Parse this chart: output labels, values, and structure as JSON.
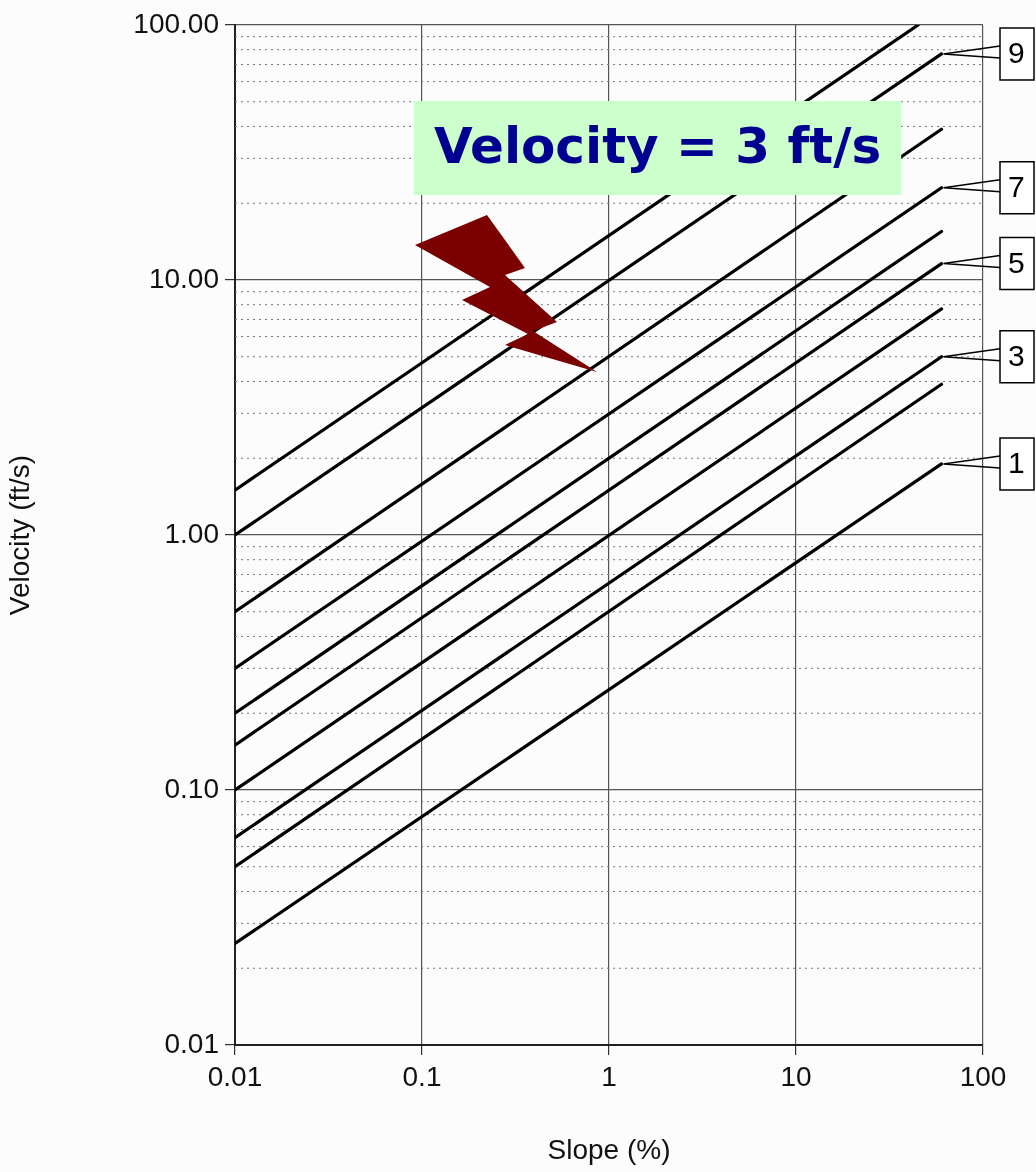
{
  "chart_data": {
    "type": "line",
    "xlabel": "Slope (%)",
    "ylabel": "Velocity (ft/s)",
    "log": "xy",
    "grid": true,
    "legend": "right",
    "marker": "none",
    "line_style": "solid",
    "x": [
      0.01,
      60
    ],
    "xlim": [
      0.01,
      100
    ],
    "xticks": [
      0.01,
      0.1,
      1,
      10,
      100
    ],
    "ylim": [
      0.01,
      100
    ],
    "yticks": [
      {
        "value": 0.01,
        "label": "0.01"
      },
      {
        "value": 0.02,
        "label": null
      },
      {
        "value": 0.03,
        "label": null
      },
      {
        "value": 0.04,
        "label": null
      },
      {
        "value": 0.05,
        "label": null
      },
      {
        "value": 0.06,
        "label": null
      },
      {
        "value": 0.07,
        "label": null
      },
      {
        "value": 0.08,
        "label": null
      },
      {
        "value": 0.09,
        "label": null
      },
      {
        "value": 0.1,
        "label": "0.10"
      },
      {
        "value": 0.2,
        "label": null
      },
      {
        "value": 0.3,
        "label": null
      },
      {
        "value": 0.4,
        "label": null
      },
      {
        "value": 0.5,
        "label": null
      },
      {
        "value": 0.6,
        "label": null
      },
      {
        "value": 0.7,
        "label": null
      },
      {
        "value": 0.8,
        "label": null
      },
      {
        "value": 0.9,
        "label": null
      },
      {
        "value": 1,
        "label": "1.00"
      },
      {
        "value": 2,
        "label": null
      },
      {
        "value": 3,
        "label": null
      },
      {
        "value": 4,
        "label": null
      },
      {
        "value": 5,
        "label": null
      },
      {
        "value": 6,
        "label": null
      },
      {
        "value": 7,
        "label": null
      },
      {
        "value": 8,
        "label": null
      },
      {
        "value": 9,
        "label": null
      },
      {
        "value": 10,
        "label": "10.00"
      },
      {
        "value": 20,
        "label": null
      },
      {
        "value": 30,
        "label": null
      },
      {
        "value": 40,
        "label": null
      },
      {
        "value": 50,
        "label": null
      },
      {
        "value": 60,
        "label": null
      },
      {
        "value": 70,
        "label": null
      },
      {
        "value": 80,
        "label": null
      },
      {
        "value": 90,
        "label": null
      },
      {
        "value": 100,
        "label": "100.00"
      }
    ],
    "series": [
      {
        "name": "1",
        "color": "#000000",
        "values": [
          0.025,
          1.9
        ]
      },
      {
        "color": "#000000",
        "values": [
          0.05,
          3.9
        ]
      },
      {
        "name": "3",
        "color": "#000000",
        "values": [
          0.065,
          5.0
        ]
      },
      {
        "color": "#000000",
        "values": [
          0.1,
          7.7
        ]
      },
      {
        "name": "5",
        "color": "#000000",
        "values": [
          0.15,
          11.6
        ]
      },
      {
        "color": "#000000",
        "values": [
          0.2,
          15.5
        ]
      },
      {
        "name": "7",
        "color": "#000000",
        "values": [
          0.3,
          23
        ]
      },
      {
        "color": "#000000",
        "values": [
          0.5,
          39
        ]
      },
      {
        "name": "9",
        "color": "#000000",
        "values": [
          1.0,
          77
        ]
      },
      {
        "color": "#000000",
        "x": [
          0.01,
          45
        ],
        "values": [
          1.5,
          100
        ]
      }
    ],
    "annotations": [
      "Velocity = 3 ft/s"
    ]
  }
}
